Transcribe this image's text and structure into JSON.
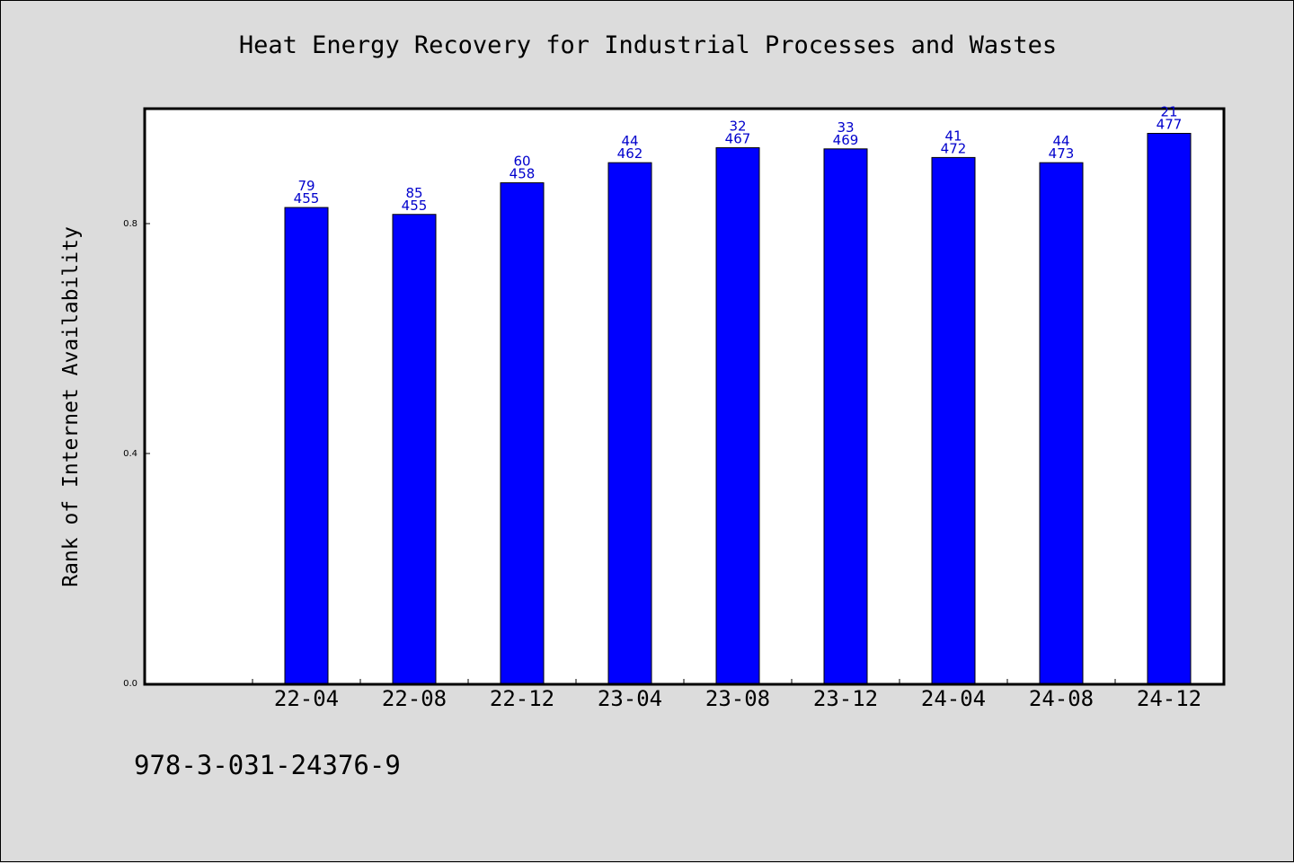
{
  "chart_data": {
    "type": "bar",
    "title": "Heat Energy Recovery for Industrial Processes and Wastes",
    "xlabel": "",
    "ylabel": "Rank of Internet Availability",
    "categories": [
      "22-04",
      "22-08",
      "22-12",
      "23-04",
      "23-08",
      "23-12",
      "24-04",
      "24-08",
      "24-12"
    ],
    "values": [
      0.828,
      0.816,
      0.871,
      0.906,
      0.932,
      0.93,
      0.915,
      0.906,
      0.957
    ],
    "labels_top": [
      "79",
      "85",
      "60",
      "44",
      "32",
      "33",
      "41",
      "44",
      "21"
    ],
    "labels_bottom": [
      "455",
      "455",
      "458",
      "462",
      "467",
      "469",
      "472",
      "473",
      "477"
    ],
    "ylim": [
      0,
      1.0
    ],
    "yticks": [
      "0.0",
      "0.4",
      "0.8"
    ],
    "grid": false,
    "bar_color": "#0000ff",
    "label_color": "#0000cc"
  },
  "footer_text": "978-3-031-24376-9"
}
